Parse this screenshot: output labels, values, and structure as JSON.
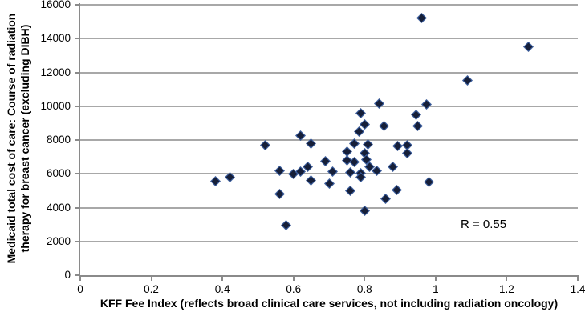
{
  "chart_data": {
    "type": "scatter",
    "title": "",
    "xlabel": "KFF Fee Index (reflects broad clinical care services, not including radiation oncology)",
    "ylabel": "Medicaid total cost of care: Course of radiation therapy for breast cancer (excluding DIBH)",
    "ylabel_lines": {
      "0": "Medicaid total cost of care: Course of radiation",
      "1": "therapy for breast cancer (excluding DIBH)"
    },
    "annotation": "R = 0.55",
    "xlim": [
      0,
      1.4
    ],
    "ylim": [
      0,
      16000
    ],
    "x_ticks": [
      "0",
      "0.2",
      "0.4",
      "0.6",
      "0.8",
      "1",
      "1.2",
      "1.4"
    ],
    "y_ticks": [
      "0",
      "2000",
      "4000",
      "6000",
      "8000",
      "10000",
      "12000",
      "14000",
      "16000"
    ],
    "grid": "horizontal",
    "legend": "none",
    "marker": {
      "shape": "diamond",
      "fill": "#161f39",
      "edge": "#3c62a7"
    },
    "points": [
      [
        0.38,
        5550
      ],
      [
        0.42,
        5800
      ],
      [
        0.52,
        7700
      ],
      [
        0.56,
        6200
      ],
      [
        0.56,
        4800
      ],
      [
        0.58,
        2950
      ],
      [
        0.6,
        6000
      ],
      [
        0.62,
        8250
      ],
      [
        0.62,
        6150
      ],
      [
        0.64,
        6400
      ],
      [
        0.65,
        7800
      ],
      [
        0.65,
        5600
      ],
      [
        0.69,
        6750
      ],
      [
        0.7,
        5400
      ],
      [
        0.71,
        6150
      ],
      [
        0.75,
        7300
      ],
      [
        0.75,
        6800
      ],
      [
        0.76,
        6060
      ],
      [
        0.76,
        5000
      ],
      [
        0.77,
        7800
      ],
      [
        0.77,
        6700
      ],
      [
        0.785,
        8480
      ],
      [
        0.79,
        9600
      ],
      [
        0.79,
        6030
      ],
      [
        0.79,
        5800
      ],
      [
        0.8,
        8900
      ],
      [
        0.8,
        7220
      ],
      [
        0.8,
        3830
      ],
      [
        0.805,
        6850
      ],
      [
        0.81,
        7740
      ],
      [
        0.815,
        6430
      ],
      [
        0.835,
        6200
      ],
      [
        0.84,
        10150
      ],
      [
        0.855,
        8840
      ],
      [
        0.86,
        4520
      ],
      [
        0.88,
        6430
      ],
      [
        0.89,
        5050
      ],
      [
        0.893,
        7650
      ],
      [
        0.92,
        7690
      ],
      [
        0.92,
        7220
      ],
      [
        0.945,
        9470
      ],
      [
        0.95,
        8840
      ],
      [
        0.96,
        15200
      ],
      [
        0.975,
        10130
      ],
      [
        0.98,
        5530
      ],
      [
        1.09,
        11550
      ],
      [
        1.26,
        13500
      ]
    ]
  },
  "colors": {
    "background": "#ffffff",
    "gridline": "#a8a8a8",
    "axis": "#8a8a8a",
    "text": "#000000",
    "marker_fill": "#161f39",
    "marker_edge": "#3c62a7"
  }
}
